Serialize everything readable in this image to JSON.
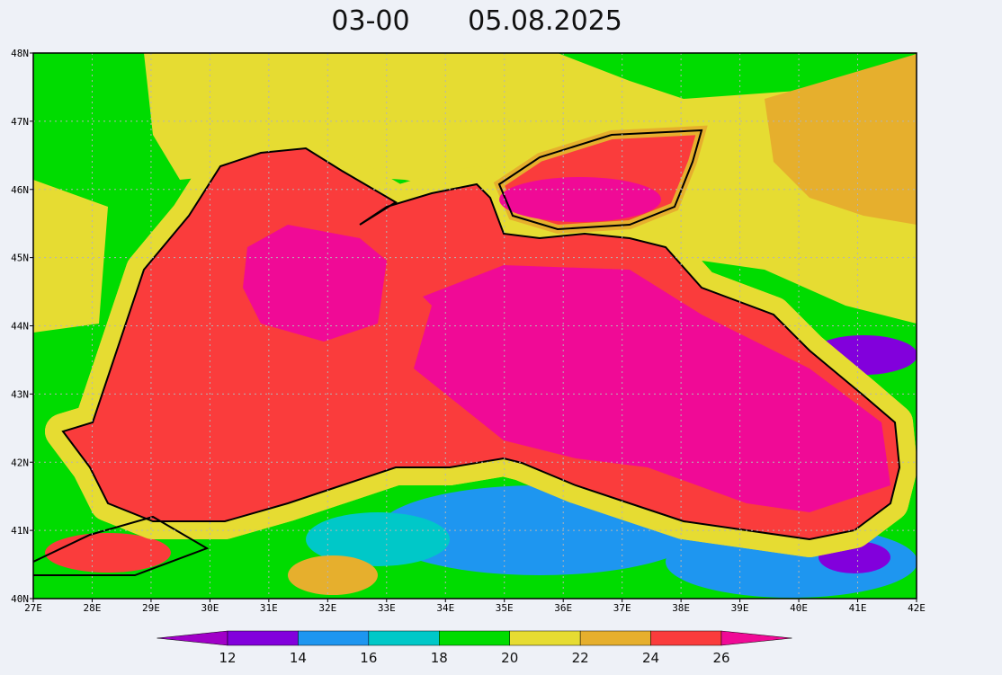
{
  "title": {
    "time": "03-00",
    "date": "05.08.2025"
  },
  "map": {
    "lon_range": [
      27,
      42
    ],
    "lat_range": [
      40,
      48
    ],
    "lon_ticks": [
      {
        "value": 27,
        "label": "27E"
      },
      {
        "value": 28,
        "label": "28E"
      },
      {
        "value": 29,
        "label": "29E"
      },
      {
        "value": 30,
        "label": "30E"
      },
      {
        "value": 31,
        "label": "31E"
      },
      {
        "value": 32,
        "label": "32E"
      },
      {
        "value": 33,
        "label": "33E"
      },
      {
        "value": 34,
        "label": "34E"
      },
      {
        "value": 35,
        "label": "35E"
      },
      {
        "value": 36,
        "label": "36E"
      },
      {
        "value": 37,
        "label": "37E"
      },
      {
        "value": 38,
        "label": "38E"
      },
      {
        "value": 39,
        "label": "39E"
      },
      {
        "value": 40,
        "label": "40E"
      },
      {
        "value": 41,
        "label": "41E"
      },
      {
        "value": 42,
        "label": "42E"
      }
    ],
    "lat_ticks": [
      {
        "value": 40,
        "label": "40N"
      },
      {
        "value": 41,
        "label": "41N"
      },
      {
        "value": 42,
        "label": "42N"
      },
      {
        "value": 43,
        "label": "43N"
      },
      {
        "value": 44,
        "label": "44N"
      },
      {
        "value": 45,
        "label": "45N"
      },
      {
        "value": 46,
        "label": "46N"
      },
      {
        "value": 47,
        "label": "47N"
      },
      {
        "value": 48,
        "label": "48N"
      }
    ]
  },
  "colorbar": {
    "levels": [
      12,
      14,
      16,
      18,
      20,
      22,
      24,
      26
    ],
    "colors": [
      "#a000c8",
      "#8200dc",
      "#1e96f0",
      "#00c8c8",
      "#00dc00",
      "#e6dc32",
      "#e6af2d",
      "#fa3c3c",
      "#f00a96"
    ]
  }
}
